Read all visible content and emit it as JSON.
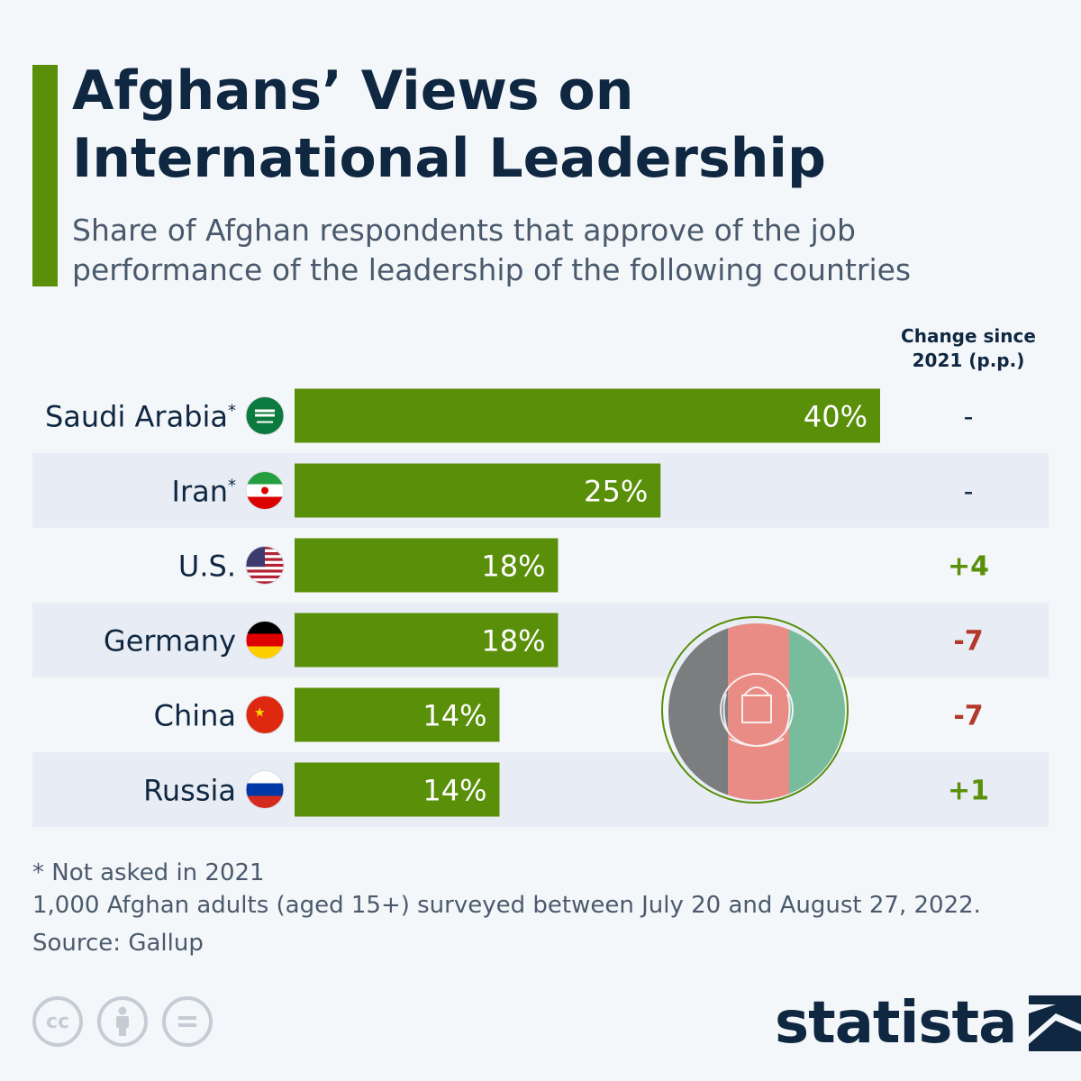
{
  "title": "Afghans’ Views on International Leadership",
  "subtitle": "Share of Afghan respondents that approve of the job performance of the leadership of the following countries",
  "change_header": "Change since 2021 (p.p.)",
  "colors": {
    "accent": "#5a8f0a",
    "bar": "#5a8f0a",
    "title": "#0f2741",
    "positive": "#5a8f0a",
    "negative": "#b33a2b",
    "neutral": "#0f2741",
    "row_band": "#e8edf5"
  },
  "chart_data": {
    "type": "bar",
    "orientation": "horizontal",
    "categories": [
      "Saudi Arabia*",
      "Iran*",
      "U.S.",
      "Germany",
      "China",
      "Russia"
    ],
    "values": [
      40,
      25,
      18,
      18,
      14,
      14
    ],
    "value_labels": [
      "40%",
      "25%",
      "18%",
      "18%",
      "14%",
      "14%"
    ],
    "changes": [
      "-",
      "-",
      "+4",
      "-7",
      "-7",
      "+1"
    ],
    "flags": [
      "saudi-arabia-flag-icon",
      "iran-flag-icon",
      "us-flag-icon",
      "germany-flag-icon",
      "china-flag-icon",
      "russia-flag-icon"
    ],
    "xlim": [
      0,
      40
    ],
    "grid": false
  },
  "decoration": "afghanistan-flag-icon",
  "footnotes": {
    "asterisk": "* Not asked in 2021",
    "survey": "1,000 Afghan adults (aged 15+) surveyed between July 20 and August 27, 2022.",
    "source": "Source: Gallup"
  },
  "license_icons": [
    "cc-icon",
    "attribution-icon",
    "no-derivatives-icon"
  ],
  "brand": "statista"
}
